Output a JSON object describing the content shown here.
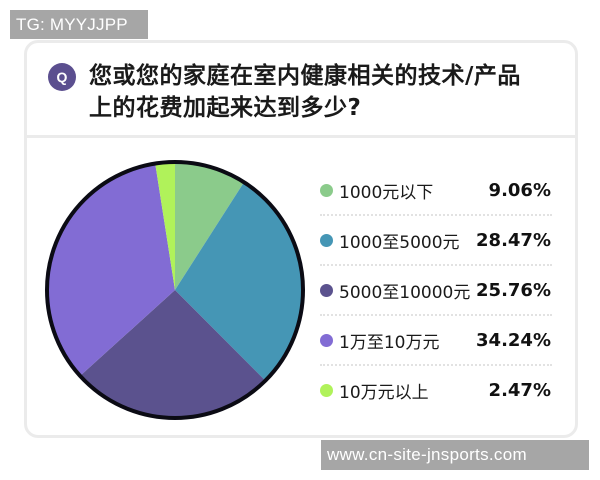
{
  "watermark_top": "TG: MYYJJPP",
  "watermark_bottom": "www.cn-site-jnsports.com",
  "card": {
    "q_badge": "Q",
    "question_line1": "您或您的家庭在室内健康相关的技术/产品",
    "question_line2": "上的花费加起来达到多少?"
  },
  "legend": [
    {
      "label": "1000元以下",
      "value": "9.06%",
      "color": "#8bcb8b"
    },
    {
      "label": "1000至5000元",
      "value": "28.47%",
      "color": "#4596b5"
    },
    {
      "label": "5000至10000元",
      "value": "25.76%",
      "color": "#5b528e"
    },
    {
      "label": "1万至10万元",
      "value": "34.24%",
      "color": "#826cd4"
    },
    {
      "label": "10万元以上",
      "value": "2.47%",
      "color": "#b0f25a"
    }
  ],
  "chart_data": {
    "type": "pie",
    "title": "您或您的家庭在室内健康相关的技术/产品上的花费加起来达到多少?",
    "categories": [
      "1000元以下",
      "1000至5000元",
      "5000至10000元",
      "1万至10万元",
      "10万元以上"
    ],
    "values": [
      9.06,
      28.47,
      25.76,
      34.24,
      2.47
    ],
    "unit": "%",
    "colors": [
      "#8bcb8b",
      "#4596b5",
      "#5b528e",
      "#826cd4",
      "#b0f25a"
    ],
    "start_angle_deg": 0,
    "direction": "clockwise",
    "legend_position": "right",
    "center": [
      175,
      290
    ],
    "radius": 128
  }
}
